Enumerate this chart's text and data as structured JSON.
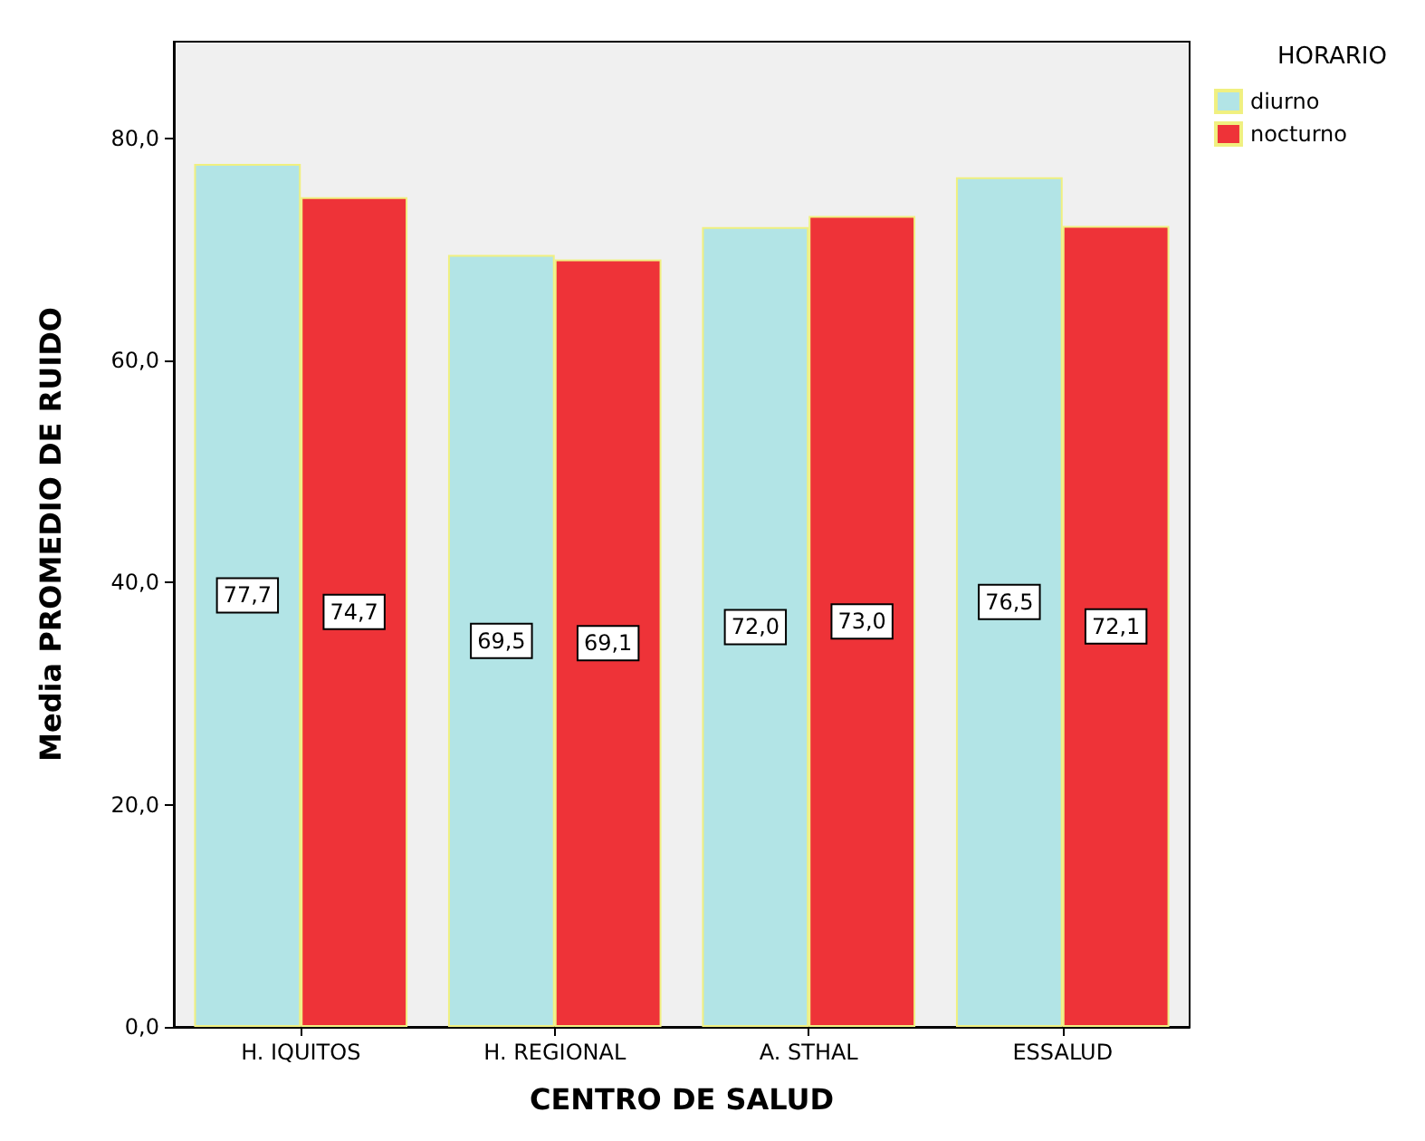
{
  "chart_data": {
    "type": "bar",
    "xlabel": "CENTRO DE SALUD",
    "ylabel": "Media PROMEDIO DE RUIDO",
    "legend_title": "HORARIO",
    "legend": "top right",
    "grid": false,
    "categories": [
      "H. IQUITOS",
      "H. REGIONAL",
      "A. STHAL",
      "ESSALUD"
    ],
    "series": [
      {
        "name": "diurno",
        "color": "#b2e4e6",
        "values": [
          77.7,
          69.5,
          72.0,
          76.5
        ],
        "value_labels": [
          "77,7",
          "69,5",
          "72,0",
          "76,5"
        ]
      },
      {
        "name": "nocturno",
        "color": "#ee3338",
        "values": [
          74.7,
          69.1,
          73.0,
          72.1
        ],
        "value_labels": [
          "74,7",
          "69,1",
          "73,0",
          "72,1"
        ]
      }
    ],
    "ylim": [
      0,
      88.7
    ],
    "yticks": [
      {
        "value": 0,
        "label": "0,0"
      },
      {
        "value": 20,
        "label": "20,0"
      },
      {
        "value": 40,
        "label": "40,0"
      },
      {
        "value": 60,
        "label": "60,0"
      },
      {
        "value": 80,
        "label": "80,0"
      }
    ]
  }
}
